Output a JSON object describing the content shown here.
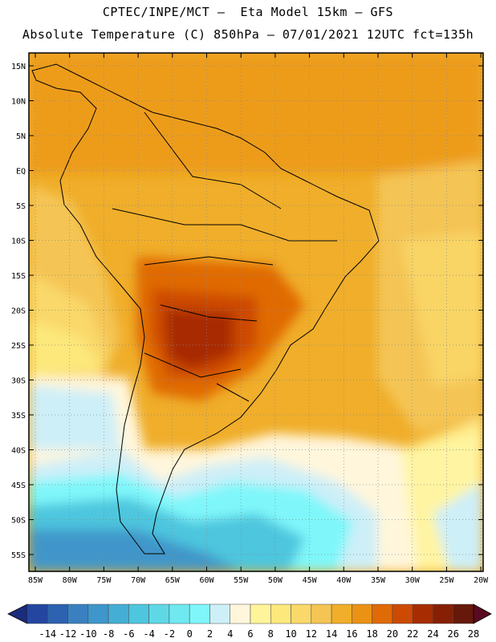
{
  "header": {
    "title_line1": "CPTEC/INPE/MCT –  Eta Model 15km – GFS",
    "title_line2": "Absolute Temperature (C) 850hPa – 07/01/2021 12UTC fct=135h"
  },
  "axes": {
    "lat_labels": [
      "15N",
      "10N",
      "5N",
      "EQ",
      "5S",
      "10S",
      "15S",
      "20S",
      "25S",
      "30S",
      "35S",
      "40S",
      "45S",
      "50S",
      "55S"
    ],
    "lon_labels": [
      "85W",
      "80W",
      "75W",
      "70W",
      "65W",
      "60W",
      "55W",
      "50W",
      "45W",
      "40W",
      "35W",
      "30W",
      "25W",
      "20W"
    ]
  },
  "legend": {
    "labels": [
      "-14",
      "-12",
      "-10",
      "-8",
      "-6",
      "-4",
      "-2",
      "0",
      "2",
      "4",
      "6",
      "8",
      "10",
      "12",
      "14",
      "16",
      "18",
      "20",
      "22",
      "24",
      "26",
      "28"
    ],
    "colors": [
      "#2446a0",
      "#2c62b0",
      "#3a80c0",
      "#3f96ca",
      "#45aed4",
      "#4ec6de",
      "#5fd8e6",
      "#6fe8f0",
      "#7ff7fa",
      "#cdeff8",
      "#fff6dc",
      "#fff49a",
      "#fde87c",
      "#fad86a",
      "#f4c554",
      "#f0ae2a",
      "#eb9214",
      "#e06a06",
      "#cc4a04",
      "#a82c02",
      "#862004",
      "#66180a"
    ],
    "left_arrow_color": "#1c2c7c",
    "right_arrow_color": "#5a0a20"
  }
}
